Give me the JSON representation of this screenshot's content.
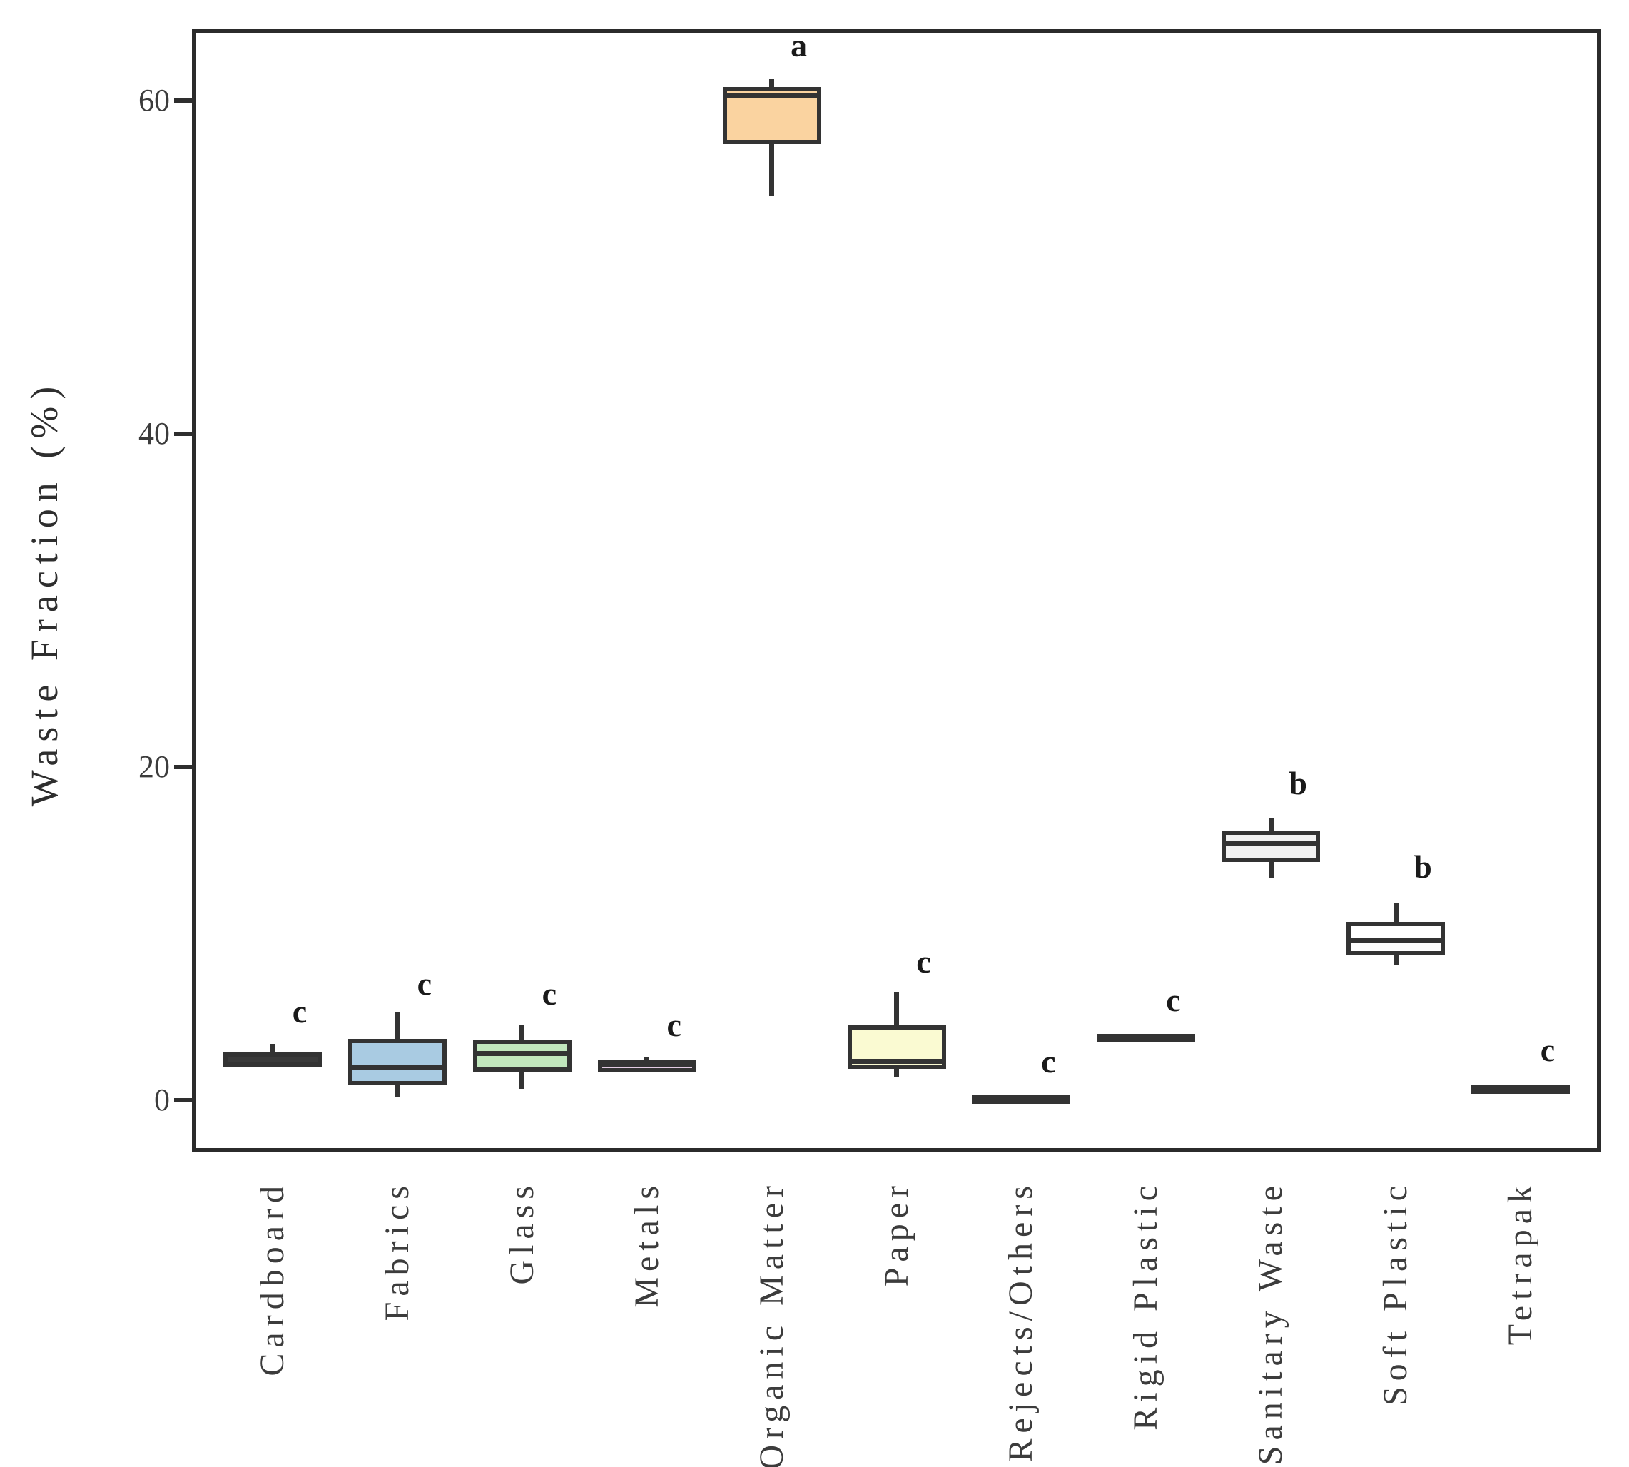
{
  "chart_data": {
    "type": "boxplot",
    "title": "",
    "xlabel": "",
    "ylabel": "Waste Fraction (%)",
    "ylim": [
      -3.0,
      64.2
    ],
    "yticks": [
      0,
      20,
      40,
      60
    ],
    "grid": false,
    "legend": "none",
    "categories": [
      "Cardboard",
      "Fabrics",
      "Glass",
      "Metals",
      "Organic Matter",
      "Paper",
      "Rejects/Others",
      "Rigid Plastic",
      "Sanitary Waste",
      "Soft Plastic",
      "Tetrapak"
    ],
    "series": [
      {
        "name": "Cardboard",
        "q1": 2.0,
        "median": null,
        "q3": 2.85,
        "whisker_low": null,
        "whisker_high": 3.4,
        "fill": "#3a3a3a",
        "sig_letter": "c",
        "sig_letter_y": 5.3
      },
      {
        "name": "Fabrics",
        "q1": 0.9,
        "median": 2.0,
        "q3": 3.7,
        "whisker_low": 0.15,
        "whisker_high": 5.3,
        "fill": "#a9cbe2",
        "sig_letter": "c",
        "sig_letter_y": 7.0
      },
      {
        "name": "Glass",
        "q1": 1.7,
        "median": 2.8,
        "q3": 3.65,
        "whisker_low": 0.7,
        "whisker_high": 4.5,
        "fill": "#c1e7bd",
        "sig_letter": "c",
        "sig_letter_y": 6.4
      },
      {
        "name": "Metals",
        "q1": 1.65,
        "median": 2.1,
        "q3": 2.45,
        "whisker_low": null,
        "whisker_high": 2.6,
        "fill": "#e3cbe3",
        "sig_letter": "c",
        "sig_letter_y": 4.5
      },
      {
        "name": "Organic Matter",
        "q1": 57.4,
        "median": 60.3,
        "q3": 60.8,
        "whisker_low": 54.3,
        "whisker_high": 61.3,
        "fill": "#fad3a0",
        "sig_letter": "a",
        "sig_letter_y": 63.3
      },
      {
        "name": "Paper",
        "q1": 1.9,
        "median": 2.35,
        "q3": 4.5,
        "whisker_low": 1.4,
        "whisker_high": 6.5,
        "fill": "#fafad2",
        "sig_letter": "c",
        "sig_letter_y": 8.3
      },
      {
        "name": "Rejects/Others",
        "q1": -0.2,
        "median": null,
        "q3": 0.3,
        "whisker_low": null,
        "whisker_high": null,
        "fill": "#3a3a3a",
        "sig_letter": "c",
        "sig_letter_y": 2.3
      },
      {
        "name": "Rigid Plastic",
        "q1": 3.55,
        "median": null,
        "q3": 4.0,
        "whisker_low": null,
        "whisker_high": null,
        "fill": "#3a3a3a",
        "sig_letter": "c",
        "sig_letter_y": 6.0
      },
      {
        "name": "Sanitary Waste",
        "q1": 14.3,
        "median": 15.45,
        "q3": 16.2,
        "whisker_low": 13.3,
        "whisker_high": 16.9,
        "fill": "#f2f2f2",
        "sig_letter": "b",
        "sig_letter_y": 19.0
      },
      {
        "name": "Soft Plastic",
        "q1": 8.7,
        "median": 9.6,
        "q3": 10.7,
        "whisker_low": 8.1,
        "whisker_high": 11.8,
        "fill": "#ffffff",
        "sig_letter": "b",
        "sig_letter_y": 14.0
      },
      {
        "name": "Tetrapak",
        "q1": 0.4,
        "median": null,
        "q3": 0.9,
        "whisker_low": null,
        "whisker_high": null,
        "fill": "#3a3a3a",
        "sig_letter": "c",
        "sig_letter_y": 3.0
      }
    ]
  },
  "colors": {
    "frame": "#2b2b2b",
    "box_stroke": "#333333",
    "text": "#3c3c3c",
    "sig_text": "#1a1a1a",
    "background": "#ffffff"
  }
}
